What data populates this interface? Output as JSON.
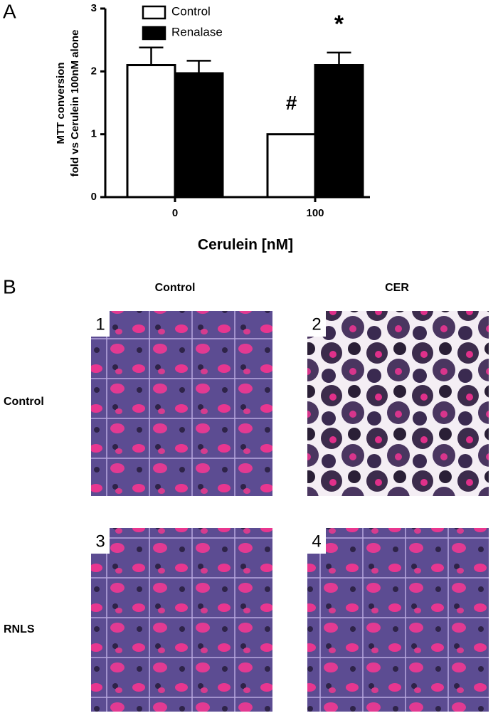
{
  "chart_data": {
    "type": "bar",
    "panel_label": "A",
    "ylabel": [
      "MTT conversion",
      "fold vs Cerulein 100nM alone"
    ],
    "xlabel": "Cerulein [nM]",
    "categories": [
      "0",
      "100"
    ],
    "series": [
      {
        "name": "Control",
        "color": "#ffffff",
        "values": [
          2.1,
          1.0
        ],
        "errors": [
          0.28,
          0
        ]
      },
      {
        "name": "Renalase",
        "color": "#000000",
        "values": [
          1.97,
          2.1
        ],
        "errors": [
          0.2,
          0.2
        ]
      }
    ],
    "annotations": [
      "#",
      "*"
    ],
    "ylim": [
      0,
      3
    ],
    "yticks": [
      0,
      1,
      2,
      3
    ],
    "legend": "top-left"
  },
  "panel_b": {
    "label": "B",
    "columns": [
      "Control",
      "CER"
    ],
    "rows": [
      "Control",
      "RNLS"
    ],
    "images": [
      "1",
      "2",
      "3",
      "4"
    ]
  }
}
